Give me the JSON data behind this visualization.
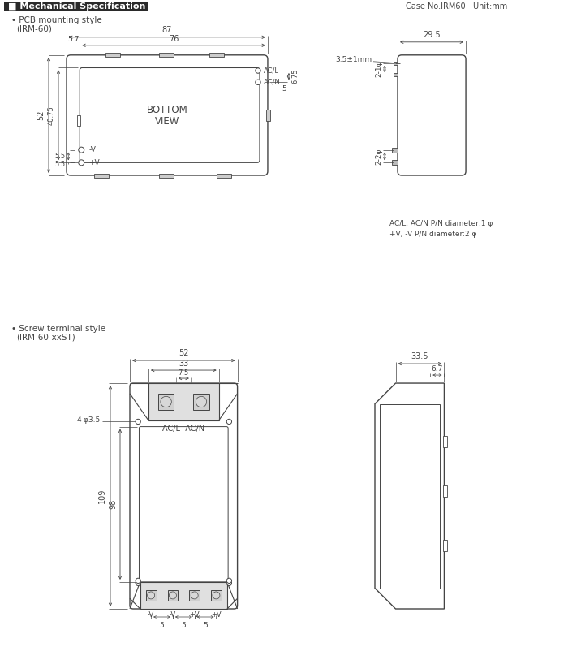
{
  "title": "Mechanical Specification",
  "case_no": "Case No.IRM60   Unit:mm",
  "style1_label": "• PCB mounting style\n  (IRM-60)",
  "style2_label": "• Screw terminal style\n  (IRM-60-xxST)",
  "note_text": "AC/L, AC/N P/N diameter:1 φ\n+V, -V P/N diameter:2 φ",
  "bg_color": "#ffffff",
  "lc": "#444444",
  "dc": "#444444"
}
